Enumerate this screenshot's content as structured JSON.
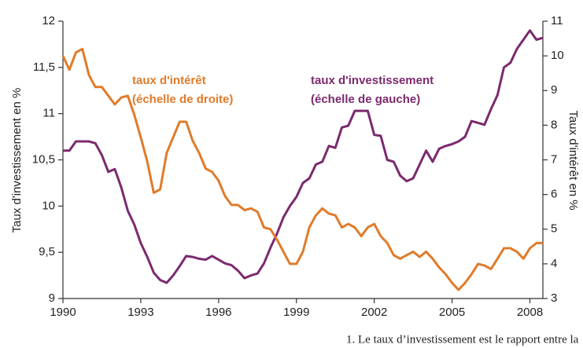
{
  "chart_data": {
    "type": "line",
    "ylabel": "Taux d'investissement en %",
    "y2label": "Taux d'intérêt en %",
    "annotations": [
      "taux d'intérêt",
      "(échelle de droite)",
      "taux d'investissement",
      "(échelle de gauche)"
    ],
    "footnote": "1. Le taux d’investissement est le rapport entre la",
    "xlim": [
      1990,
      2008.5
    ],
    "xticks": [
      1990,
      1993,
      1996,
      1999,
      2002,
      2005,
      2008
    ],
    "ylim": [
      9,
      12
    ],
    "yticks": [
      9,
      {
        "value": 9.5,
        "label": "9,5"
      },
      10,
      {
        "value": 10.5,
        "label": "10,5"
      },
      11,
      {
        "value": 11.5,
        "label": "11,5"
      },
      12
    ],
    "y2lim": [
      3,
      11
    ],
    "y2ticks": [
      3,
      4,
      5,
      6,
      7,
      8,
      9,
      10,
      11
    ],
    "x": [
      1990,
      1990.25,
      1990.5,
      1990.75,
      1991,
      1991.25,
      1991.5,
      1991.75,
      1992,
      1992.25,
      1992.5,
      1992.75,
      1993,
      1993.25,
      1993.5,
      1993.75,
      1994,
      1994.25,
      1994.5,
      1994.75,
      1995,
      1995.25,
      1995.5,
      1995.75,
      1996,
      1996.25,
      1996.5,
      1996.75,
      1997,
      1997.25,
      1997.5,
      1997.75,
      1998,
      1998.25,
      1998.5,
      1998.75,
      1999,
      1999.25,
      1999.5,
      1999.75,
      2000,
      2000.25,
      2000.5,
      2000.75,
      2001,
      2001.25,
      2001.5,
      2001.75,
      2002,
      2002.25,
      2002.5,
      2002.75,
      2003,
      2003.25,
      2003.5,
      2003.75,
      2004,
      2004.25,
      2004.5,
      2004.75,
      2005,
      2005.25,
      2005.5,
      2005.75,
      2006,
      2006.25,
      2006.5,
      2006.75,
      2007,
      2007.25,
      2007.5,
      2007.75,
      2008,
      2008.25,
      2008.5
    ],
    "series": [
      {
        "name": "taux d'investissement",
        "color": "#7b2a6e",
        "values": [
          10.6,
          10.6,
          10.7,
          10.7,
          10.7,
          10.68,
          10.55,
          10.37,
          10.4,
          10.2,
          9.95,
          9.8,
          9.6,
          9.45,
          9.28,
          9.2,
          9.17,
          9.25,
          9.35,
          9.46,
          9.45,
          9.43,
          9.42,
          9.46,
          9.42,
          9.38,
          9.36,
          9.3,
          9.22,
          9.25,
          9.27,
          9.38,
          9.55,
          9.7,
          9.88,
          10.0,
          10.1,
          10.25,
          10.3,
          10.45,
          10.48,
          10.65,
          10.63,
          10.85,
          10.87,
          11.03,
          11.03,
          11.03,
          10.77,
          10.76,
          10.5,
          10.48,
          10.33,
          10.27,
          10.3,
          10.45,
          10.6,
          10.48,
          10.62,
          10.65,
          10.67,
          10.7,
          10.75,
          10.92,
          10.9,
          10.88,
          11.05,
          11.2,
          11.5,
          11.55,
          11.7,
          11.8,
          11.9,
          11.8,
          11.82
        ]
      },
      {
        "name": "taux d'intérêt",
        "color": "#e07b2a",
        "axis": "y2",
        "values": [
          10.0,
          9.6,
          10.1,
          10.2,
          9.45,
          9.1,
          9.1,
          8.85,
          8.6,
          8.8,
          8.85,
          8.3,
          7.65,
          6.95,
          6.05,
          6.15,
          7.2,
          7.65,
          8.1,
          8.1,
          7.55,
          7.2,
          6.75,
          6.65,
          6.4,
          5.95,
          5.7,
          5.7,
          5.55,
          5.6,
          5.5,
          5.05,
          5.0,
          4.7,
          4.35,
          4.0,
          4.0,
          4.35,
          5.05,
          5.4,
          5.6,
          5.45,
          5.4,
          5.05,
          5.15,
          5.05,
          4.8,
          5.05,
          5.15,
          4.8,
          4.6,
          4.25,
          4.15,
          4.25,
          4.35,
          4.2,
          4.35,
          4.15,
          3.9,
          3.7,
          3.45,
          3.25,
          3.45,
          3.7,
          4.0,
          3.95,
          3.85,
          4.15,
          4.45,
          4.45,
          4.35,
          4.15,
          4.45,
          4.6,
          4.6
        ]
      }
    ]
  }
}
